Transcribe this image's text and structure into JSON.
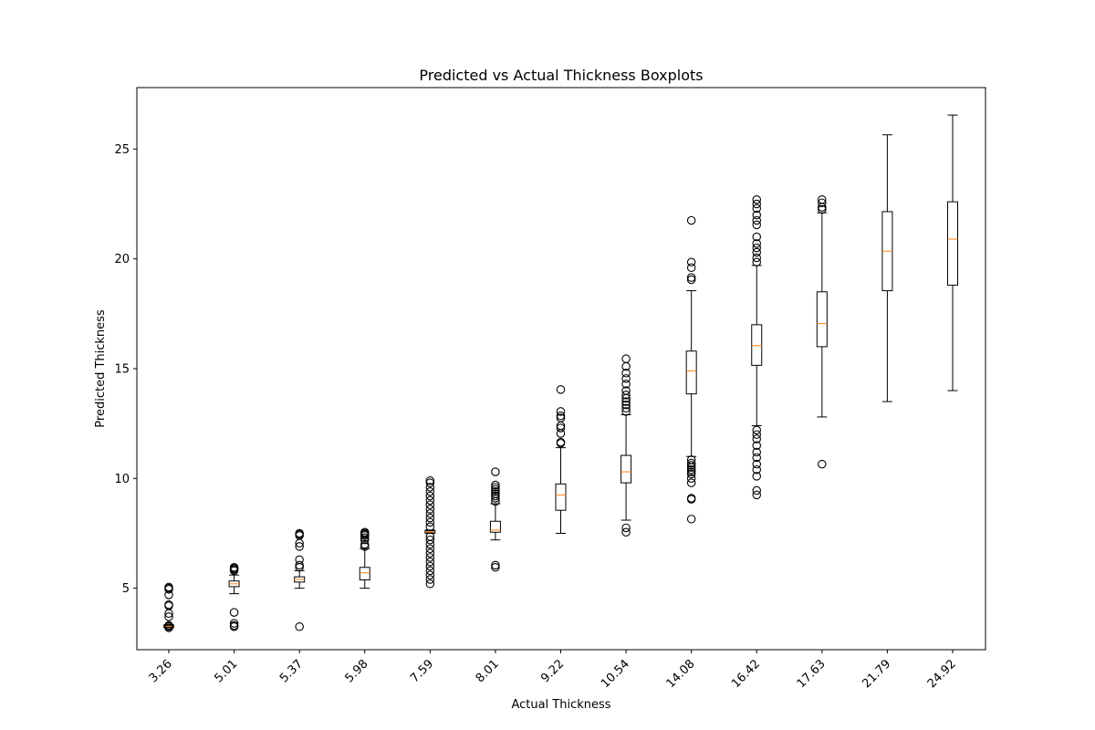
{
  "chart_data": {
    "type": "boxplot",
    "title": "Predicted vs Actual Thickness Boxplots",
    "xlabel": "Actual Thickness",
    "ylabel": "Predicted Thickness",
    "ylim": [
      2.2,
      27.8
    ],
    "yticks": [
      5,
      10,
      15,
      20,
      25
    ],
    "grid": false,
    "categories": [
      "3.26",
      "5.01",
      "5.37",
      "5.98",
      "7.59",
      "8.01",
      "9.22",
      "10.54",
      "14.08",
      "16.42",
      "17.63",
      "21.79",
      "24.92"
    ],
    "boxes": [
      {
        "category": "3.26",
        "whisker_low": 3.2,
        "q1": 3.22,
        "median": 3.26,
        "q3": 3.31,
        "whisker_high": 3.34,
        "outliers": [
          3.2,
          3.26,
          3.3,
          3.7,
          3.85,
          4.2,
          4.25,
          4.7,
          4.95,
          5.0,
          5.05
        ]
      },
      {
        "category": "5.01",
        "whisker_low": 4.75,
        "q1": 5.07,
        "median": 5.2,
        "q3": 5.33,
        "whisker_high": 5.6,
        "outliers": [
          3.25,
          3.3,
          3.4,
          3.9,
          5.8,
          5.85,
          5.9,
          5.95
        ]
      },
      {
        "category": "5.37",
        "whisker_low": 5.0,
        "q1": 5.28,
        "median": 5.4,
        "q3": 5.52,
        "whisker_high": 5.8,
        "outliers": [
          3.25,
          5.95,
          6.05,
          6.3,
          6.9,
          7.05,
          7.4,
          7.45,
          7.5
        ]
      },
      {
        "category": "5.98",
        "whisker_low": 5.0,
        "q1": 5.38,
        "median": 5.7,
        "q3": 5.95,
        "whisker_high": 6.8,
        "outliers": [
          6.9,
          7.0,
          7.2,
          7.3,
          7.4,
          7.45,
          7.5,
          7.55
        ]
      },
      {
        "category": "7.59",
        "whisker_low": 7.5,
        "q1": 7.52,
        "median": 7.57,
        "q3": 7.62,
        "whisker_high": 7.65,
        "outliers": [
          5.2,
          5.4,
          5.6,
          5.8,
          6.0,
          6.2,
          6.4,
          6.6,
          6.8,
          7.0,
          7.2,
          7.35,
          7.8,
          8.0,
          8.2,
          8.4,
          8.6,
          8.8,
          9.0,
          9.2,
          9.4,
          9.6,
          9.8,
          9.9
        ]
      },
      {
        "category": "8.01",
        "whisker_low": 7.2,
        "q1": 7.55,
        "median": 7.65,
        "q3": 8.05,
        "whisker_high": 8.85,
        "outliers": [
          5.95,
          6.05,
          8.95,
          9.1,
          9.2,
          9.3,
          9.4,
          9.5,
          9.6,
          9.7,
          10.3
        ]
      },
      {
        "category": "9.22",
        "whisker_low": 7.5,
        "q1": 8.55,
        "median": 9.25,
        "q3": 9.75,
        "whisker_high": 11.4,
        "outliers": [
          11.6,
          11.65,
          12.05,
          12.3,
          12.4,
          12.75,
          12.85,
          13.05,
          14.05
        ]
      },
      {
        "category": "10.54",
        "whisker_low": 8.1,
        "q1": 9.8,
        "median": 10.3,
        "q3": 11.05,
        "whisker_high": 12.9,
        "outliers": [
          7.55,
          7.75,
          13.05,
          13.2,
          13.35,
          13.5,
          13.65,
          13.8,
          14.0,
          14.3,
          14.55,
          14.8,
          15.1,
          15.45
        ]
      },
      {
        "category": "14.08",
        "whisker_low": 11.0,
        "q1": 13.85,
        "median": 14.9,
        "q3": 15.8,
        "whisker_high": 18.55,
        "outliers": [
          8.15,
          9.05,
          9.1,
          9.8,
          10.0,
          10.2,
          10.3,
          10.4,
          10.5,
          10.6,
          10.7,
          10.85,
          19.05,
          19.15,
          19.6,
          19.85,
          21.75
        ]
      },
      {
        "category": "16.42",
        "whisker_low": 12.4,
        "q1": 15.15,
        "median": 16.05,
        "q3": 17.0,
        "whisker_high": 19.7,
        "outliers": [
          9.25,
          9.45,
          10.1,
          10.4,
          10.65,
          10.95,
          11.2,
          11.5,
          11.8,
          12.0,
          12.2,
          19.85,
          20.05,
          20.3,
          20.5,
          20.7,
          21.0,
          21.55,
          21.75,
          22.0,
          22.3,
          22.5,
          22.7
        ]
      },
      {
        "category": "17.63",
        "whisker_low": 12.8,
        "q1": 16.0,
        "median": 17.05,
        "q3": 18.5,
        "whisker_high": 22.1,
        "outliers": [
          10.65,
          22.25,
          22.35,
          22.55,
          22.7
        ]
      },
      {
        "category": "21.79",
        "whisker_low": 13.5,
        "q1": 18.55,
        "median": 20.35,
        "q3": 22.15,
        "whisker_high": 25.65,
        "outliers": []
      },
      {
        "category": "24.92",
        "whisker_low": 14.0,
        "q1": 18.8,
        "median": 20.9,
        "q3": 22.6,
        "whisker_high": 26.55,
        "outliers": []
      }
    ],
    "colors": {
      "box": "#000000",
      "median": "#ff7f0e",
      "outlier": "#000000"
    }
  }
}
